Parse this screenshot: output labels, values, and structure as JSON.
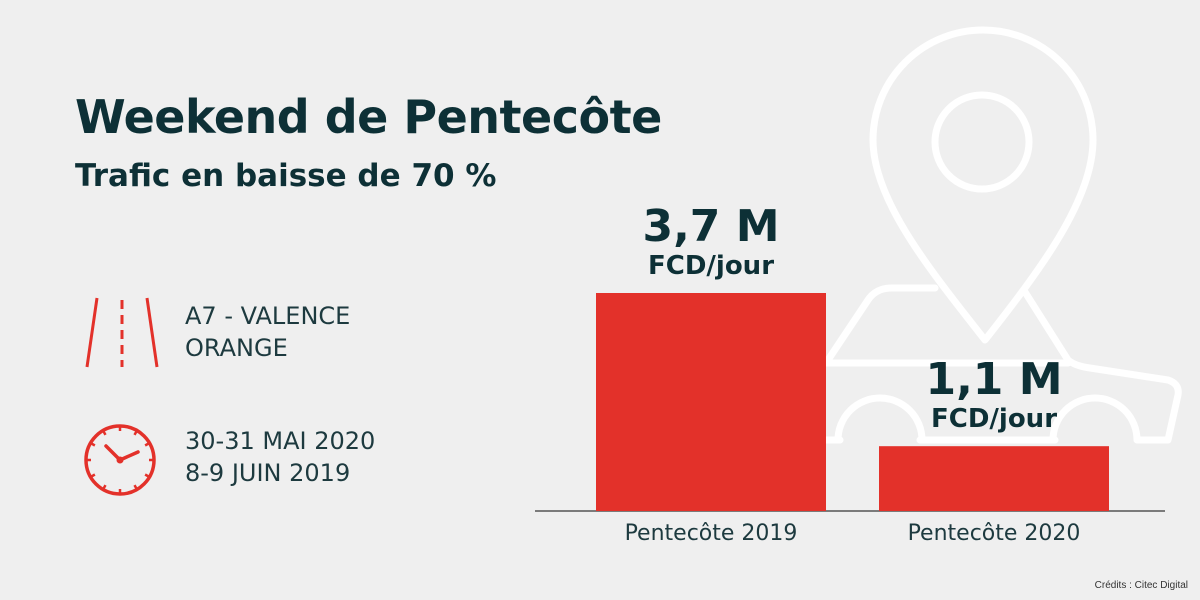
{
  "header": {
    "title": "Weekend de Pentecôte",
    "subtitle": "Trafic en baisse de 70 %"
  },
  "info": {
    "location": {
      "icon": "road-icon",
      "lines": [
        "A7 - VALENCE",
        "ORANGE"
      ]
    },
    "dates": {
      "icon": "clock-icon",
      "lines": [
        "30-31 MAI 2020",
        "8-9 JUIN 2019"
      ]
    }
  },
  "chart_data": {
    "type": "bar",
    "title": "Trafic en baisse de 70 %",
    "categories": [
      "Pentecôte 2019",
      "Pentecôte 2020"
    ],
    "values": [
      3.7,
      1.1
    ],
    "unit": "M FCD/jour",
    "data_labels": [
      {
        "value": "3,7 M",
        "unit": "FCD/jour"
      },
      {
        "value": "1,1 M",
        "unit": "FCD/jour"
      }
    ],
    "ylim": [
      0,
      3.7
    ],
    "grid": false
  },
  "colors": {
    "bar": "#e3312a",
    "text": "#0d3036",
    "background": "#efefef"
  },
  "credits": "Crédits : Citec Digital"
}
